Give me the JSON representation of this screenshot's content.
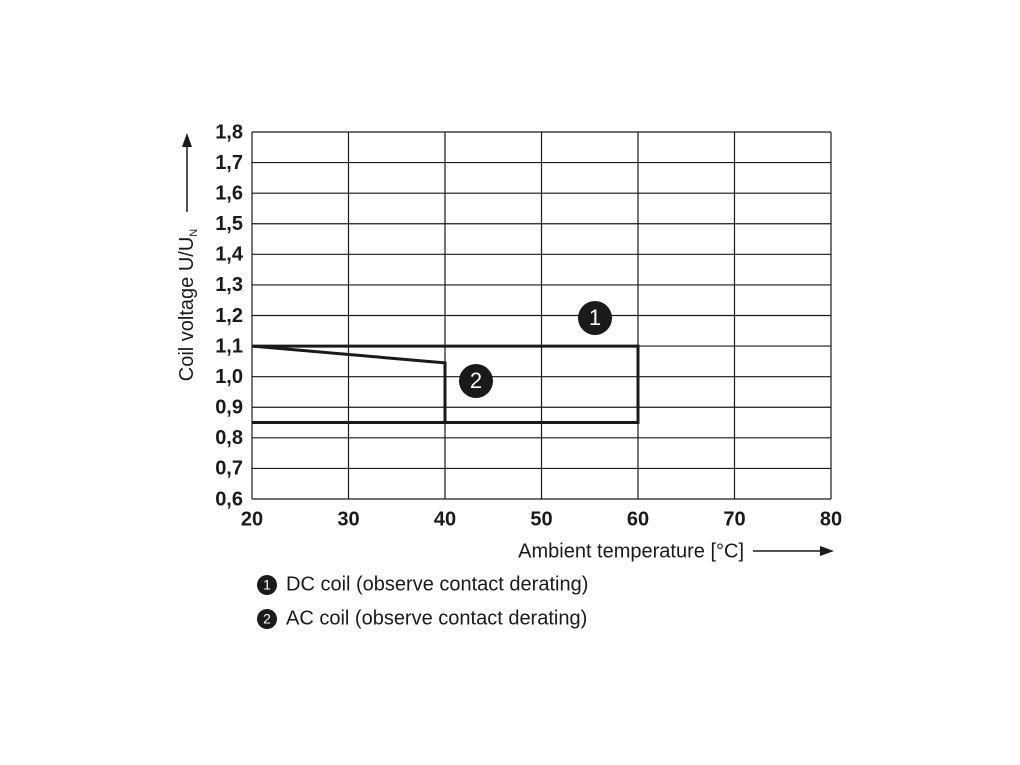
{
  "chart_data": {
    "type": "line",
    "x_label": "Ambient temperature [°C]",
    "y_label": "Coil voltage U/U",
    "y_label_subscript": "N",
    "series": [
      {
        "name": "DC coil (observe contact derating)",
        "label": "1",
        "color": "#1a1a1a",
        "x": [
          20,
          60,
          60,
          20
        ],
        "values": [
          1.1,
          1.1,
          0.85,
          0.85
        ]
      },
      {
        "name": "AC coil (observe contact derating)",
        "label": "2",
        "color": "#1a1a1a",
        "x": [
          20,
          40,
          40,
          20
        ],
        "values": [
          1.1,
          1.045,
          0.85,
          0.85
        ]
      }
    ],
    "xlim": [
      20,
      80
    ],
    "xticks": [
      20,
      30,
      40,
      50,
      60,
      70,
      80
    ],
    "ylim": [
      0.6,
      1.8
    ],
    "yticks": [
      {
        "value": 0.6,
        "label": "0,6"
      },
      {
        "value": 0.7,
        "label": "0,7"
      },
      {
        "value": 0.8,
        "label": "0,8"
      },
      {
        "value": 0.9,
        "label": "0,9"
      },
      {
        "value": 1.0,
        "label": "1,0"
      },
      {
        "value": 1.1,
        "label": "1,1"
      },
      {
        "value": 1.2,
        "label": "1,2"
      },
      {
        "value": 1.3,
        "label": "1,3"
      },
      {
        "value": 1.4,
        "label": "1,4"
      },
      {
        "value": 1.5,
        "label": "1,5"
      },
      {
        "value": 1.6,
        "label": "1,6"
      },
      {
        "value": 1.7,
        "label": "1,7"
      },
      {
        "value": 1.8,
        "label": "1,8"
      }
    ],
    "grid": true
  }
}
